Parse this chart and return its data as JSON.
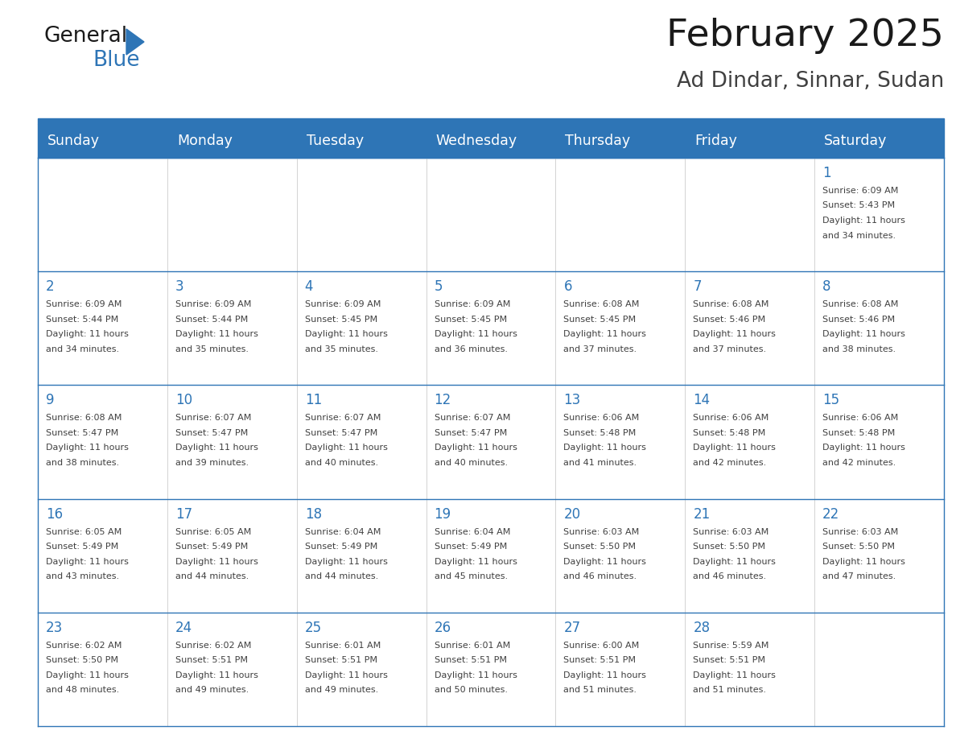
{
  "title": "February 2025",
  "subtitle": "Ad Dindar, Sinnar, Sudan",
  "days_of_week": [
    "Sunday",
    "Monday",
    "Tuesday",
    "Wednesday",
    "Thursday",
    "Friday",
    "Saturday"
  ],
  "header_bg": "#2E75B6",
  "header_text": "#FFFFFF",
  "cell_bg": "#FFFFFF",
  "day_num_color": "#2E75B6",
  "info_color": "#404040",
  "line_color": "#2E75B6",
  "sep_line_color": "#2E75B6",
  "title_color": "#1a1a1a",
  "subtitle_color": "#404040",
  "logo_general_color": "#1a1a1a",
  "logo_blue_color": "#2E75B6",
  "logo_triangle_color": "#2E75B6",
  "calendar": [
    [
      null,
      null,
      null,
      null,
      null,
      null,
      {
        "day": 1,
        "sunrise": "6:09 AM",
        "sunset": "5:43 PM",
        "daylight": "11 hours and 34 minutes."
      }
    ],
    [
      {
        "day": 2,
        "sunrise": "6:09 AM",
        "sunset": "5:44 PM",
        "daylight": "11 hours and 34 minutes."
      },
      {
        "day": 3,
        "sunrise": "6:09 AM",
        "sunset": "5:44 PM",
        "daylight": "11 hours and 35 minutes."
      },
      {
        "day": 4,
        "sunrise": "6:09 AM",
        "sunset": "5:45 PM",
        "daylight": "11 hours and 35 minutes."
      },
      {
        "day": 5,
        "sunrise": "6:09 AM",
        "sunset": "5:45 PM",
        "daylight": "11 hours and 36 minutes."
      },
      {
        "day": 6,
        "sunrise": "6:08 AM",
        "sunset": "5:45 PM",
        "daylight": "11 hours and 37 minutes."
      },
      {
        "day": 7,
        "sunrise": "6:08 AM",
        "sunset": "5:46 PM",
        "daylight": "11 hours and 37 minutes."
      },
      {
        "day": 8,
        "sunrise": "6:08 AM",
        "sunset": "5:46 PM",
        "daylight": "11 hours and 38 minutes."
      }
    ],
    [
      {
        "day": 9,
        "sunrise": "6:08 AM",
        "sunset": "5:47 PM",
        "daylight": "11 hours and 38 minutes."
      },
      {
        "day": 10,
        "sunrise": "6:07 AM",
        "sunset": "5:47 PM",
        "daylight": "11 hours and 39 minutes."
      },
      {
        "day": 11,
        "sunrise": "6:07 AM",
        "sunset": "5:47 PM",
        "daylight": "11 hours and 40 minutes."
      },
      {
        "day": 12,
        "sunrise": "6:07 AM",
        "sunset": "5:47 PM",
        "daylight": "11 hours and 40 minutes."
      },
      {
        "day": 13,
        "sunrise": "6:06 AM",
        "sunset": "5:48 PM",
        "daylight": "11 hours and 41 minutes."
      },
      {
        "day": 14,
        "sunrise": "6:06 AM",
        "sunset": "5:48 PM",
        "daylight": "11 hours and 42 minutes."
      },
      {
        "day": 15,
        "sunrise": "6:06 AM",
        "sunset": "5:48 PM",
        "daylight": "11 hours and 42 minutes."
      }
    ],
    [
      {
        "day": 16,
        "sunrise": "6:05 AM",
        "sunset": "5:49 PM",
        "daylight": "11 hours and 43 minutes."
      },
      {
        "day": 17,
        "sunrise": "6:05 AM",
        "sunset": "5:49 PM",
        "daylight": "11 hours and 44 minutes."
      },
      {
        "day": 18,
        "sunrise": "6:04 AM",
        "sunset": "5:49 PM",
        "daylight": "11 hours and 44 minutes."
      },
      {
        "day": 19,
        "sunrise": "6:04 AM",
        "sunset": "5:49 PM",
        "daylight": "11 hours and 45 minutes."
      },
      {
        "day": 20,
        "sunrise": "6:03 AM",
        "sunset": "5:50 PM",
        "daylight": "11 hours and 46 minutes."
      },
      {
        "day": 21,
        "sunrise": "6:03 AM",
        "sunset": "5:50 PM",
        "daylight": "11 hours and 46 minutes."
      },
      {
        "day": 22,
        "sunrise": "6:03 AM",
        "sunset": "5:50 PM",
        "daylight": "11 hours and 47 minutes."
      }
    ],
    [
      {
        "day": 23,
        "sunrise": "6:02 AM",
        "sunset": "5:50 PM",
        "daylight": "11 hours and 48 minutes."
      },
      {
        "day": 24,
        "sunrise": "6:02 AM",
        "sunset": "5:51 PM",
        "daylight": "11 hours and 49 minutes."
      },
      {
        "day": 25,
        "sunrise": "6:01 AM",
        "sunset": "5:51 PM",
        "daylight": "11 hours and 49 minutes."
      },
      {
        "day": 26,
        "sunrise": "6:01 AM",
        "sunset": "5:51 PM",
        "daylight": "11 hours and 50 minutes."
      },
      {
        "day": 27,
        "sunrise": "6:00 AM",
        "sunset": "5:51 PM",
        "daylight": "11 hours and 51 minutes."
      },
      {
        "day": 28,
        "sunrise": "5:59 AM",
        "sunset": "5:51 PM",
        "daylight": "11 hours and 51 minutes."
      },
      null
    ]
  ],
  "fig_width": 11.88,
  "fig_height": 9.18
}
